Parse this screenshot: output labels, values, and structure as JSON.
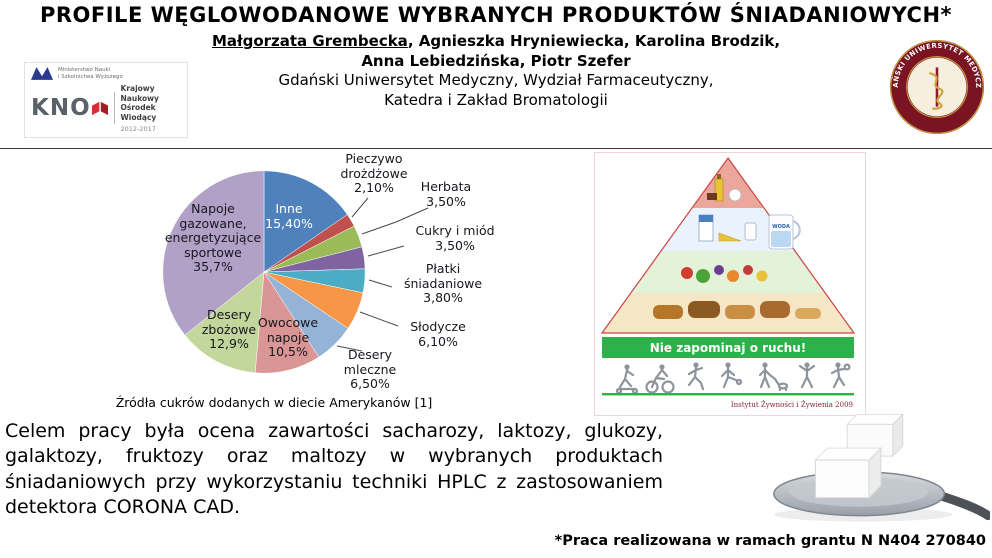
{
  "header": {
    "title": "PROFILE WĘGLOWODANOWE WYBRANYCH PRODUKTÓW ŚNIADANIOWYCH*",
    "author_underlined": "Małgorzata Grembecka",
    "authors_line1_rest": ", Agnieszka Hryniewiecka, Karolina Brodzik,",
    "authors_line2": "Anna Lebiedzińska, Piotr Szefer",
    "affiliation_line1": "Gdański Uniwersytet Medyczny, Wydział Farmaceutyczny,",
    "affiliation_line2": "Katedra i Zakład Bromatologii"
  },
  "know_logo": {
    "ministry_line1": "Ministerstwo Nauki",
    "ministry_line2": "i Szkolnictwa Wyższego",
    "acronym": "KNO",
    "name_line1": "Krajowy Naukowy",
    "name_line2": "Ośrodek Wiodący",
    "years": "2012-2017"
  },
  "seal": {
    "ring_text": "GDAŃSKI UNIWERSYTET MEDYCZNY"
  },
  "chart_data": {
    "type": "pie",
    "caption": "Źródła cukrów dodanych w diecie Amerykanów [1]",
    "legend_position": "none",
    "start_angle_deg": -90,
    "direction": "clockwise",
    "slices": [
      {
        "id": "inne",
        "label": "Inne",
        "value": 15.4,
        "display": "Inne\n15,40%",
        "color": "#4F81BD",
        "label_inside": true
      },
      {
        "id": "pieczywo-drozdzowe",
        "label": "Pieczywo drożdżowe",
        "value": 2.1,
        "display": "Pieczywo\ndrożdżowe\n2,10%",
        "color": "#C0504D",
        "label_inside": false
      },
      {
        "id": "herbata",
        "label": "Herbata",
        "value": 3.5,
        "display": "Herbata\n3,50%",
        "color": "#9BBB59",
        "label_inside": false
      },
      {
        "id": "cukry-i-miod",
        "label": "Cukry i miód",
        "value": 3.5,
        "display": "Cukry i miód\n3,50%",
        "color": "#8064A2",
        "label_inside": false
      },
      {
        "id": "platki-sniadaniowe",
        "label": "Płatki śniadaniowe",
        "value": 3.8,
        "display": "Płatki\nśniadaniowe\n3,80%",
        "color": "#4BACC6",
        "label_inside": false
      },
      {
        "id": "slodycze",
        "label": "Słodycze",
        "value": 6.1,
        "display": "Słodycze\n6,10%",
        "color": "#F79646",
        "label_inside": false
      },
      {
        "id": "desery-mleczne",
        "label": "Desery mleczne",
        "value": 6.5,
        "display": "Desery\nmleczne\n6,50%",
        "color": "#95B3D7",
        "label_inside": false
      },
      {
        "id": "owocowe-napoje",
        "label": "Owocowe napoje",
        "value": 10.5,
        "display": "Owocowe\nnapoje\n10,5%",
        "color": "#D99694",
        "label_inside": true
      },
      {
        "id": "desery-zbozowe",
        "label": "Desery zbożowe",
        "value": 12.9,
        "display": "Desery\nzbożowe\n12,9%",
        "color": "#C3D69B",
        "label_inside": true
      },
      {
        "id": "napoje-gazowane",
        "label": "Napoje gazowane, energetyzujące sportowe",
        "value": 35.7,
        "display": "Napoje\ngazowane,\nenergetyzujące\nsportowe\n35,7%",
        "color": "#B2A1C7",
        "label_inside": true
      }
    ]
  },
  "pyramid": {
    "banner_text": "Nie zapominaj o ruchu!",
    "banner_color": "#2eb04a",
    "water_label": "WODA",
    "credit": "Instytut Żywności i Żywienia 2009"
  },
  "body": {
    "paragraph": "Celem pracy była ocena zawartości sacharozy, laktozy, glukozy, galaktozy, fruktozy oraz maltozy w wybranych produktach śniadaniowych przy wykorzystaniu techniki HPLC z zastosowaniem detektora CORONA CAD."
  },
  "footnote": "*Praca realizowana w ramach grantu N N404 270840"
}
